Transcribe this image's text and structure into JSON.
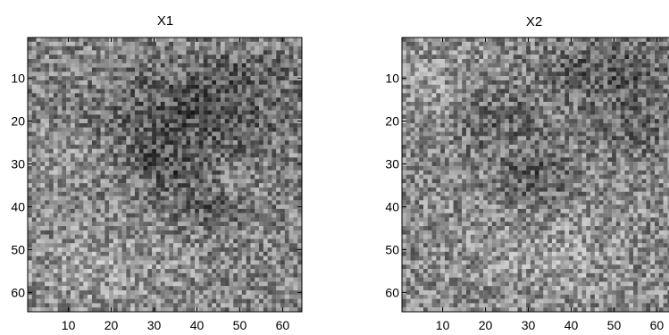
{
  "chart_data": [
    {
      "type": "heatmap",
      "title": "X1",
      "colormap": "gray",
      "grid_size": [
        64,
        64
      ],
      "xlim": [
        0.5,
        64.5
      ],
      "ylim": [
        0.5,
        64.5
      ],
      "y_reversed": true,
      "xticks": [
        10,
        20,
        30,
        40,
        50,
        60
      ],
      "yticks": [
        10,
        20,
        30,
        40,
        50,
        60
      ],
      "xticklabels": [
        "10",
        "20",
        "30",
        "40",
        "50",
        "60"
      ],
      "yticklabels": [
        "10",
        "20",
        "30",
        "40",
        "50",
        "60"
      ],
      "pattern": {
        "base": 0.52,
        "noise": 0.24,
        "seed": 7,
        "dark_blobs": [
          {
            "x": 40,
            "y": 18,
            "rx": 22,
            "ry": 10,
            "depth": 0.2
          },
          {
            "x": 33,
            "y": 31,
            "rx": 9,
            "ry": 5,
            "depth": 0.18
          },
          {
            "x": 44,
            "y": 41,
            "rx": 10,
            "ry": 4,
            "depth": 0.14
          },
          {
            "x": 50,
            "y": 8,
            "rx": 14,
            "ry": 6,
            "depth": 0.08
          }
        ],
        "light_blobs": [
          {
            "x": 18,
            "y": 54,
            "rx": 18,
            "ry": 10,
            "depth": 0.1
          },
          {
            "x": 8,
            "y": 30,
            "rx": 8,
            "ry": 8,
            "depth": 0.08
          }
        ]
      }
    },
    {
      "type": "heatmap",
      "title": "X2",
      "colormap": "gray",
      "grid_size": [
        64,
        64
      ],
      "xlim": [
        0.5,
        64.5
      ],
      "ylim": [
        0.5,
        64.5
      ],
      "y_reversed": true,
      "xticks": [
        10,
        20,
        30,
        40,
        50,
        60
      ],
      "yticks": [
        10,
        20,
        30,
        40,
        50,
        60
      ],
      "xticklabels": [
        "10",
        "20",
        "30",
        "40",
        "50",
        "60"
      ],
      "yticklabels": [
        "10",
        "20",
        "30",
        "40",
        "50",
        "60"
      ],
      "pattern": {
        "base": 0.54,
        "noise": 0.24,
        "seed": 19,
        "dark_blobs": [
          {
            "x": 50,
            "y": 8,
            "rx": 16,
            "ry": 8,
            "depth": 0.2
          },
          {
            "x": 22,
            "y": 20,
            "rx": 12,
            "ry": 7,
            "depth": 0.15
          },
          {
            "x": 32,
            "y": 33,
            "rx": 9,
            "ry": 6,
            "depth": 0.18
          },
          {
            "x": 55,
            "y": 22,
            "rx": 10,
            "ry": 8,
            "depth": 0.12
          }
        ],
        "light_blobs": [
          {
            "x": 8,
            "y": 12,
            "rx": 9,
            "ry": 10,
            "depth": 0.08
          },
          {
            "x": 36,
            "y": 52,
            "rx": 16,
            "ry": 8,
            "depth": 0.08
          }
        ]
      }
    }
  ]
}
